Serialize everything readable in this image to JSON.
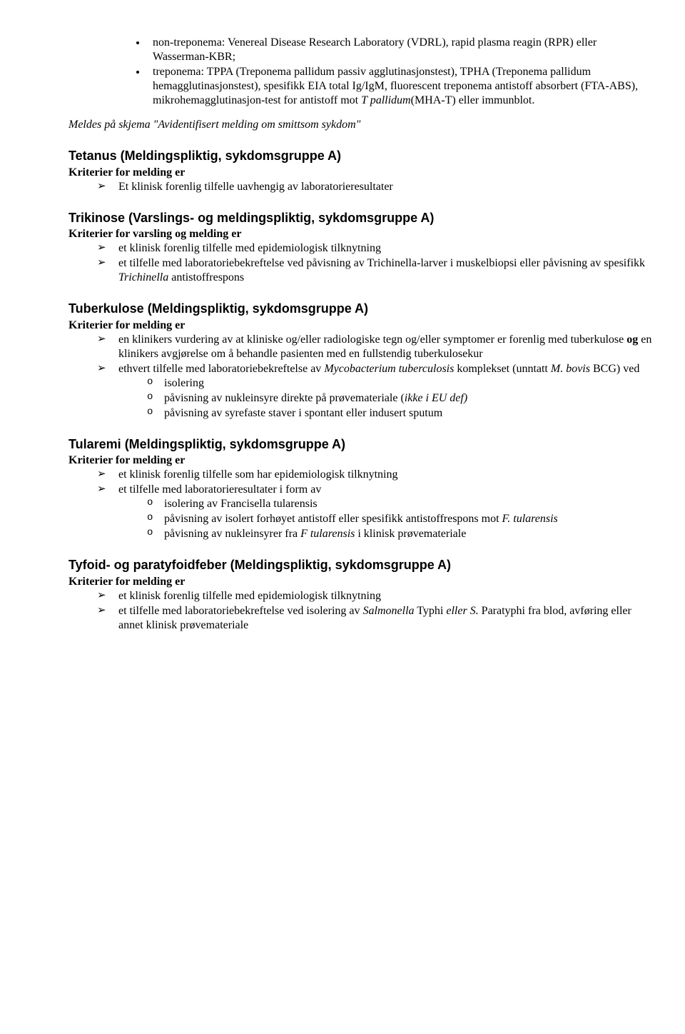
{
  "top_list": {
    "items": [
      {
        "prefix": "non-treponema: Venereal Disease Research Laboratory (VDRL), rapid plasma reagin (RPR) eller Wasserman-KBR;"
      },
      {
        "prefix": "treponema: TPPA (Treponema pallidum passiv agglutinasjonstest), TPHA (Treponema pallidum hemagglutinasjonstest), spesifikk EIA total Ig/IgM, fluorescent treponema antistoff absorbert (FTA-ABS), mikrohemagglutinasjon-test for antistoff mot ",
        "italic": "T pallidum",
        "suffix": "(MHA-T) eller immunblot."
      }
    ]
  },
  "meldes_note": "Meldes på skjema \"Avidentifisert  melding om smittsom sykdom\"",
  "tetanus": {
    "title": "Tetanus (Meldingspliktig, sykdomsgruppe A)",
    "criteria_label": "Kriterier for melding er",
    "items": [
      "Et klinisk forenlig tilfelle uavhengig av laboratorieresultater"
    ]
  },
  "trikinose": {
    "title": "Trikinose (Varslings- og meldingspliktig, sykdomsgruppe A)",
    "criteria_label": "Kriterier for varsling og melding er",
    "item1": "et klinisk forenlig tilfelle med epidemiologisk tilknytning",
    "item2_a": "et tilfelle med laboratoriebekreftelse ved påvisning av Trichinella-larver i muskelbiopsi eller påvisning av spesifikk ",
    "item2_ital": "Trichinella",
    "item2_b": " antistoffrespons"
  },
  "tuberkulose": {
    "title": "Tuberkulose (Meldingspliktig, sykdomsgruppe A)",
    "criteria_label": "Kriterier for melding er",
    "item1_a": "en klinikers vurdering av at kliniske og/eller radiologiske tegn og/eller symptomer er forenlig med tuberkulose ",
    "item1_bold": "og",
    "item1_b": " en klinikers avgjørelse om å behandle pasienten med en fullstendig tuberkulosekur",
    "item2_a": "ethvert tilfelle med laboratoriebekreftelse av ",
    "item2_ital1": "Mycobacterium tuberculosis",
    "item2_b": " komplekset (unntatt ",
    "item2_ital2": "M. bovis",
    "item2_c": " BCG) ved",
    "sub1": "isolering",
    "sub2_a": "påvisning av nukleinsyre direkte på prøvemateriale (",
    "sub2_ital": "ikke i EU def)",
    "sub3": "påvisning av syrefaste staver i spontant eller indusert sputum"
  },
  "tularemi": {
    "title": "Tularemi (Meldingspliktig, sykdomsgruppe A)",
    "criteria_label": "Kriterier for melding er",
    "item1": "et klinisk forenlig tilfelle som har epidemiologisk tilknytning",
    "item2": "et tilfelle med laboratorieresultater i form av",
    "sub1": "isolering av Francisella tularensis",
    "sub2_a": "påvisning av isolert forhøyet antistoff eller spesifikk antistoffrespons mot ",
    "sub2_ital": "F. tularensis",
    "sub3_a": "påvisning av nukleinsyrer fra ",
    "sub3_ital": "F tularensis",
    "sub3_b": " i klinisk prøvemateriale"
  },
  "tyfoid": {
    "title": "Tyfoid- og paratyfoidfeber (Meldingspliktig, sykdomsgruppe A)",
    "criteria_label": "Kriterier for melding er",
    "item1": "et klinisk forenlig tilfelle med epidemiologisk tilknytning",
    "item2_a": "et tilfelle med laboratoriebekreftelse ved isolering av ",
    "item2_ital1": "Salmonella",
    "item2_b": " Typhi ",
    "item2_ital2": "eller S.",
    "item2_c": " Paratyphi fra blod, avføring eller annet klinisk prøvemateriale"
  }
}
